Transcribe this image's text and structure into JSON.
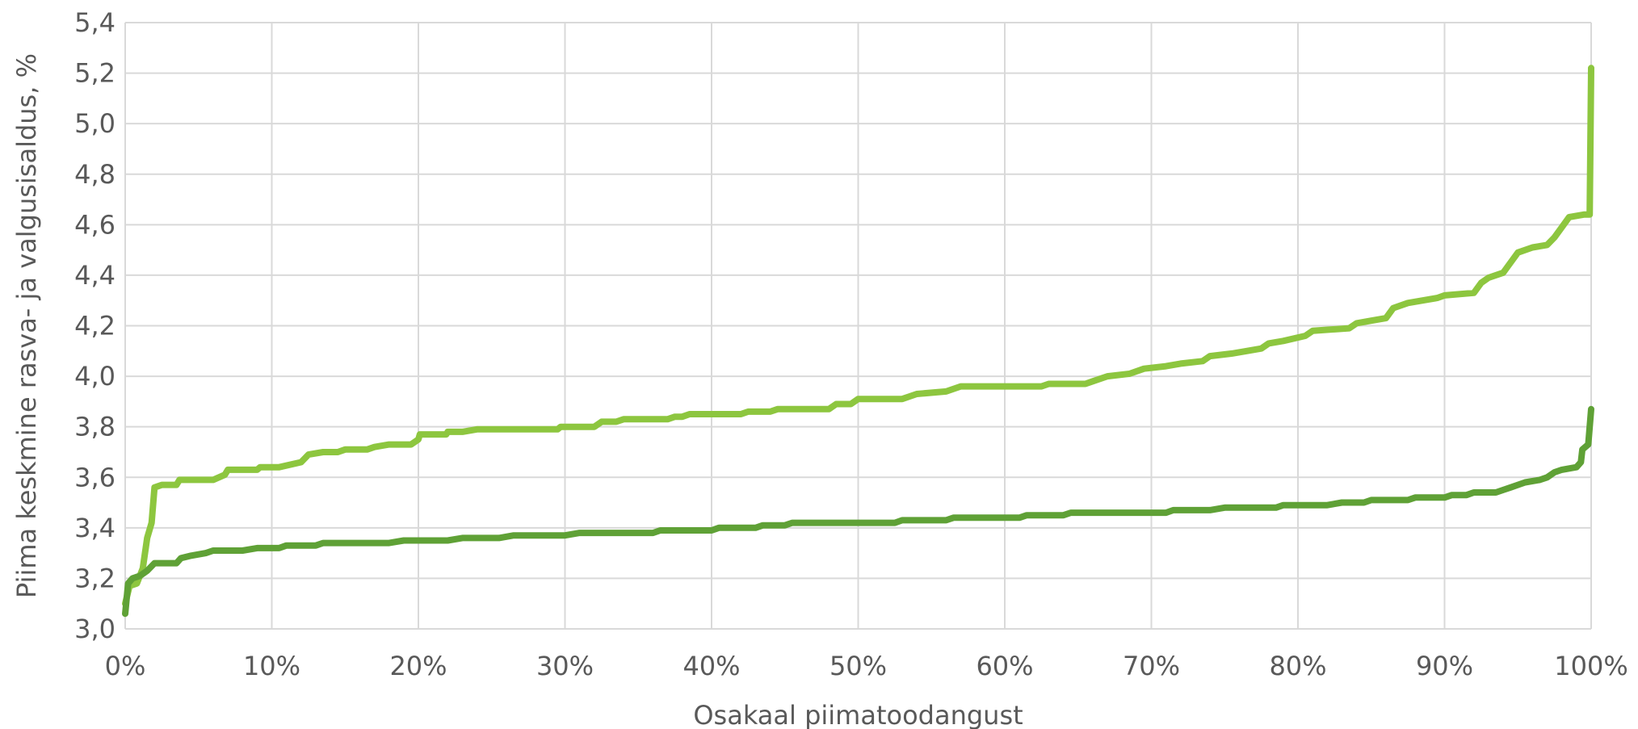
{
  "chart_data": {
    "type": "line",
    "title": "",
    "xlabel": "Osakaal piimatoodangust",
    "ylabel": "Piima keskmine rasva- ja valgusisaldus, %",
    "xlim": [
      0,
      100
    ],
    "ylim": [
      3.0,
      5.4
    ],
    "x_ticks": [
      "0%",
      "10%",
      "20%",
      "30%",
      "40%",
      "50%",
      "60%",
      "70%",
      "80%",
      "90%",
      "100%"
    ],
    "y_ticks": [
      "3,0",
      "3,2",
      "3,4",
      "3,6",
      "3,8",
      "4,0",
      "4,2",
      "4,4",
      "4,6",
      "4,8",
      "5,0",
      "5,2",
      "5,4"
    ],
    "grid": true,
    "legend": "none",
    "series": [
      {
        "color": "#8dc63f",
        "points": [
          [
            0,
            3.1
          ],
          [
            0.3,
            3.17
          ],
          [
            0.8,
            3.18
          ],
          [
            1.2,
            3.24
          ],
          [
            1.5,
            3.36
          ],
          [
            1.8,
            3.42
          ],
          [
            2.0,
            3.56
          ],
          [
            2.5,
            3.57
          ],
          [
            3.5,
            3.57
          ],
          [
            3.7,
            3.59
          ],
          [
            6.0,
            3.59
          ],
          [
            6.8,
            3.61
          ],
          [
            7.0,
            3.63
          ],
          [
            9.0,
            3.63
          ],
          [
            9.2,
            3.64
          ],
          [
            10.5,
            3.64
          ],
          [
            12.0,
            3.66
          ],
          [
            12.5,
            3.69
          ],
          [
            13.5,
            3.7
          ],
          [
            14.5,
            3.7
          ],
          [
            15.0,
            3.71
          ],
          [
            16.5,
            3.71
          ],
          [
            17.0,
            3.72
          ],
          [
            18.0,
            3.73
          ],
          [
            19.5,
            3.73
          ],
          [
            20.0,
            3.75
          ],
          [
            20.1,
            3.77
          ],
          [
            21.9,
            3.77
          ],
          [
            22.0,
            3.78
          ],
          [
            23.0,
            3.78
          ],
          [
            24.0,
            3.79
          ],
          [
            29.5,
            3.79
          ],
          [
            29.7,
            3.8
          ],
          [
            32.0,
            3.8
          ],
          [
            32.5,
            3.82
          ],
          [
            33.5,
            3.82
          ],
          [
            34.0,
            3.83
          ],
          [
            37.0,
            3.83
          ],
          [
            37.5,
            3.84
          ],
          [
            38.0,
            3.84
          ],
          [
            38.5,
            3.85
          ],
          [
            42.0,
            3.85
          ],
          [
            42.5,
            3.86
          ],
          [
            44.0,
            3.86
          ],
          [
            44.5,
            3.87
          ],
          [
            48.0,
            3.87
          ],
          [
            48.5,
            3.89
          ],
          [
            49.5,
            3.89
          ],
          [
            50.0,
            3.91
          ],
          [
            53.0,
            3.91
          ],
          [
            53.5,
            3.92
          ],
          [
            54.0,
            3.93
          ],
          [
            56.0,
            3.94
          ],
          [
            57.0,
            3.96
          ],
          [
            62.5,
            3.96
          ],
          [
            63.0,
            3.97
          ],
          [
            65.5,
            3.97
          ],
          [
            66.0,
            3.98
          ],
          [
            67.0,
            4.0
          ],
          [
            68.5,
            4.01
          ],
          [
            69.5,
            4.03
          ],
          [
            71.0,
            4.04
          ],
          [
            72.0,
            4.05
          ],
          [
            73.5,
            4.06
          ],
          [
            74.0,
            4.08
          ],
          [
            75.5,
            4.09
          ],
          [
            76.5,
            4.1
          ],
          [
            77.5,
            4.11
          ],
          [
            78.0,
            4.13
          ],
          [
            79.0,
            4.14
          ],
          [
            80.5,
            4.16
          ],
          [
            81.0,
            4.18
          ],
          [
            83.5,
            4.19
          ],
          [
            84.0,
            4.21
          ],
          [
            85.0,
            4.22
          ],
          [
            86.0,
            4.23
          ],
          [
            86.5,
            4.27
          ],
          [
            87.5,
            4.29
          ],
          [
            88.5,
            4.3
          ],
          [
            89.5,
            4.31
          ],
          [
            90.0,
            4.32
          ],
          [
            92.0,
            4.33
          ],
          [
            92.5,
            4.37
          ],
          [
            93.0,
            4.39
          ],
          [
            94.0,
            4.41
          ],
          [
            94.5,
            4.45
          ],
          [
            95.0,
            4.49
          ],
          [
            96.0,
            4.51
          ],
          [
            97.0,
            4.52
          ],
          [
            97.5,
            4.55
          ],
          [
            98.0,
            4.59
          ],
          [
            98.5,
            4.63
          ],
          [
            99.5,
            4.64
          ],
          [
            99.9,
            4.64
          ],
          [
            100,
            5.22
          ]
        ]
      },
      {
        "color": "#5fa136",
        "points": [
          [
            0,
            3.06
          ],
          [
            0.2,
            3.18
          ],
          [
            0.5,
            3.2
          ],
          [
            1.0,
            3.21
          ],
          [
            1.5,
            3.23
          ],
          [
            2.0,
            3.26
          ],
          [
            3.5,
            3.26
          ],
          [
            3.8,
            3.28
          ],
          [
            4.5,
            3.29
          ],
          [
            5.5,
            3.3
          ],
          [
            6.0,
            3.31
          ],
          [
            8.0,
            3.31
          ],
          [
            9.0,
            3.32
          ],
          [
            10.5,
            3.32
          ],
          [
            11.0,
            3.33
          ],
          [
            13.0,
            3.33
          ],
          [
            13.5,
            3.34
          ],
          [
            18.0,
            3.34
          ],
          [
            19.0,
            3.35
          ],
          [
            22.0,
            3.35
          ],
          [
            23.0,
            3.36
          ],
          [
            25.5,
            3.36
          ],
          [
            26.5,
            3.37
          ],
          [
            30.0,
            3.37
          ],
          [
            31.0,
            3.38
          ],
          [
            36.0,
            3.38
          ],
          [
            36.5,
            3.39
          ],
          [
            40.0,
            3.39
          ],
          [
            40.5,
            3.4
          ],
          [
            43.0,
            3.4
          ],
          [
            43.5,
            3.41
          ],
          [
            45.0,
            3.41
          ],
          [
            45.5,
            3.42
          ],
          [
            52.5,
            3.42
          ],
          [
            53.0,
            3.43
          ],
          [
            56.0,
            3.43
          ],
          [
            56.5,
            3.44
          ],
          [
            61.0,
            3.44
          ],
          [
            61.5,
            3.45
          ],
          [
            64.0,
            3.45
          ],
          [
            64.5,
            3.46
          ],
          [
            71.0,
            3.46
          ],
          [
            71.5,
            3.47
          ],
          [
            74.0,
            3.47
          ],
          [
            75.0,
            3.48
          ],
          [
            78.5,
            3.48
          ],
          [
            79.0,
            3.49
          ],
          [
            82.0,
            3.49
          ],
          [
            83.0,
            3.5
          ],
          [
            84.5,
            3.5
          ],
          [
            85.0,
            3.51
          ],
          [
            87.5,
            3.51
          ],
          [
            88.0,
            3.52
          ],
          [
            90.0,
            3.52
          ],
          [
            90.5,
            3.53
          ],
          [
            91.5,
            3.53
          ],
          [
            92.0,
            3.54
          ],
          [
            93.5,
            3.54
          ],
          [
            94.0,
            3.55
          ],
          [
            94.5,
            3.56
          ],
          [
            95.0,
            3.57
          ],
          [
            95.5,
            3.58
          ],
          [
            96.5,
            3.59
          ],
          [
            97.0,
            3.6
          ],
          [
            97.5,
            3.62
          ],
          [
            98.0,
            3.63
          ],
          [
            99.0,
            3.64
          ],
          [
            99.3,
            3.66
          ],
          [
            99.4,
            3.71
          ],
          [
            99.8,
            3.73
          ],
          [
            100,
            3.87
          ]
        ]
      }
    ]
  }
}
